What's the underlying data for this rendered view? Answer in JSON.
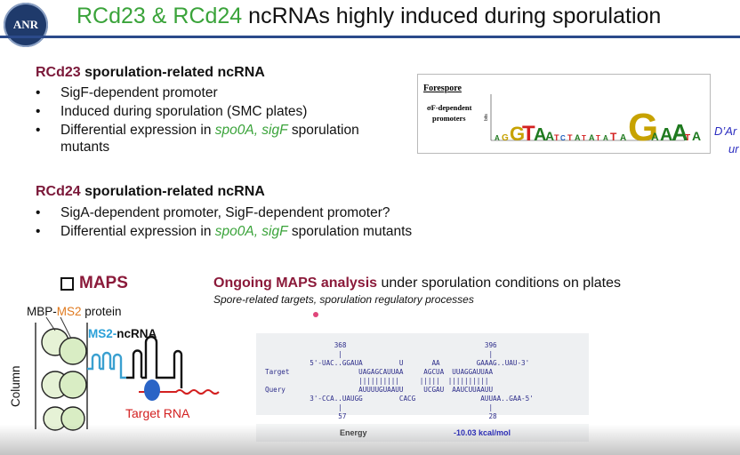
{
  "header": {
    "logo_text": "ANR",
    "title_part1": "RCd23 & RCd24",
    "title_part2": " ncRNAs highly induced during sporulation"
  },
  "rcd23": {
    "name": "RCd23",
    "heading_rest": " sporulation-related ncRNA",
    "bullets": {
      "b1": "SigF-dependent promoter",
      "b2": "Induced during sporulation (SMC plates)",
      "b3_pre": "Differential expression in ",
      "b3_genes": "spo0A, sigF",
      "b3_post": " sporulation",
      "b3_cont": "mutants"
    }
  },
  "rcd24": {
    "name": "RCd24",
    "heading_rest": " sporulation-related ncRNA",
    "bullets": {
      "b1": "SigA-dependent promoter, SigF-dependent promoter?",
      "b2_pre": "Differential expression in ",
      "b2_genes": "spo0A, sigF",
      "b2_post": " sporulation mutants"
    }
  },
  "motif_figure": {
    "label": "Forespore",
    "sub1": "σF-dependent",
    "sub2": "promoters",
    "yaxis": "bits",
    "letters": "GTAA·T T·A T··G AAATA·A"
  },
  "reference": {
    "line1": "D’Ar",
    "line2": "ur"
  },
  "maps": {
    "heading": "MAPS",
    "protein_a": "MBP-",
    "protein_b": "MS2",
    "protein_c": " protein",
    "ms2_a": "MS2-",
    "ms2_b": "ncRNA",
    "column": "Column",
    "target": "Target RNA"
  },
  "ongoing": {
    "bold": "Ongoing MAPS analysis",
    "rest": " under sporulation conditions on plates",
    "subtitle": "Spore-related targets, sporulation regulatory processes"
  },
  "alignment": {
    "lines": [
      "                 368                                  396",
      "                  |                                    |",
      "           5'-UAC..GGAUA         U       AA         GAAAG..UAU-3'",
      "Target                 UAGAGCAUUAA     AGCUA  UUAGGAUUAA",
      "                       ||||||||||     |||||  ||||||||||",
      "Query                  AUUUUGUAAUU     UCGAU  AAUCUUAAUU",
      "           3'-CCA..UAUGG         CACG                AUUAA..GAA-5'",
      "                  |                                    |",
      "                  57                                   28"
    ],
    "energy_label": "Energy",
    "energy_value": "-10.03 kcal/mol"
  }
}
